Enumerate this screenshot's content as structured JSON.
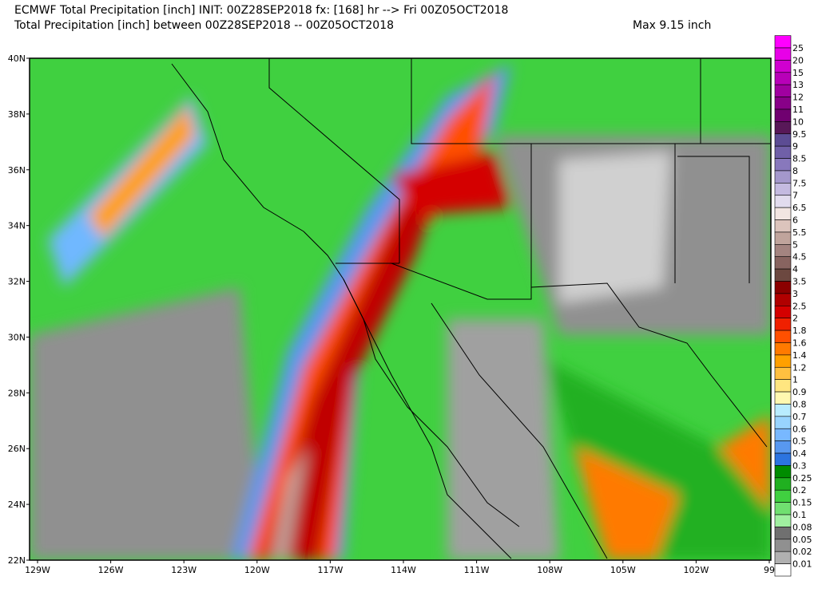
{
  "header": {
    "title": "ECMWF Total Precipitation [inch] INIT: 00Z28SEP2018 fx: [168] hr --> Fri 00Z05OCT2018",
    "subtitle": "Total Precipitation [inch] between 00Z28SEP2018 -- 00Z05OCT2018",
    "max": "Max 9.15 inch"
  },
  "map": {
    "lat_labels": [
      "40N",
      "38N",
      "36N",
      "34N",
      "32N",
      "30N",
      "28N",
      "26N",
      "24N",
      "22N"
    ],
    "lon_labels": [
      "129W",
      "126W",
      "123W",
      "120W",
      "117W",
      "114W",
      "111W",
      "108W",
      "105W",
      "102W",
      "99"
    ]
  },
  "colorbar": {
    "labels": [
      "25",
      "20",
      "15",
      "13",
      "12",
      "11",
      "10",
      "9.5",
      "9",
      "8.5",
      "8",
      "7.5",
      "7",
      "6.5",
      "6",
      "5.5",
      "5",
      "4.5",
      "4",
      "3.5",
      "3",
      "2.5",
      "2",
      "1.8",
      "1.6",
      "1.4",
      "1.2",
      "1",
      "0.9",
      "0.8",
      "0.7",
      "0.6",
      "0.5",
      "0.4",
      "0.3",
      "0.25",
      "0.2",
      "0.15",
      "0.1",
      "0.08",
      "0.05",
      "0.02",
      "0.01"
    ],
    "colors": [
      "#ff00ff",
      "#e800e8",
      "#d000d0",
      "#b800b8",
      "#a000a0",
      "#880088",
      "#700070",
      "#581858",
      "#5c4c94",
      "#7060a8",
      "#8878bc",
      "#a498cc",
      "#c4bae0",
      "#e2dcee",
      "#f2e6e2",
      "#dcc4bc",
      "#c0a49c",
      "#a48480",
      "#886460",
      "#6c4840",
      "#8b0000",
      "#b00000",
      "#d40000",
      "#f02000",
      "#ff5000",
      "#ff7a00",
      "#ffa000",
      "#ffc040",
      "#ffe680",
      "#fff8b0",
      "#b8ecff",
      "#98d4ff",
      "#78b8ff",
      "#5898f0",
      "#2c74e0",
      "#008c00",
      "#20b020",
      "#40d040",
      "#70e070",
      "#a0f0a0",
      "#707070",
      "#909090",
      "#b0b0b0",
      "#ffffff"
    ]
  }
}
